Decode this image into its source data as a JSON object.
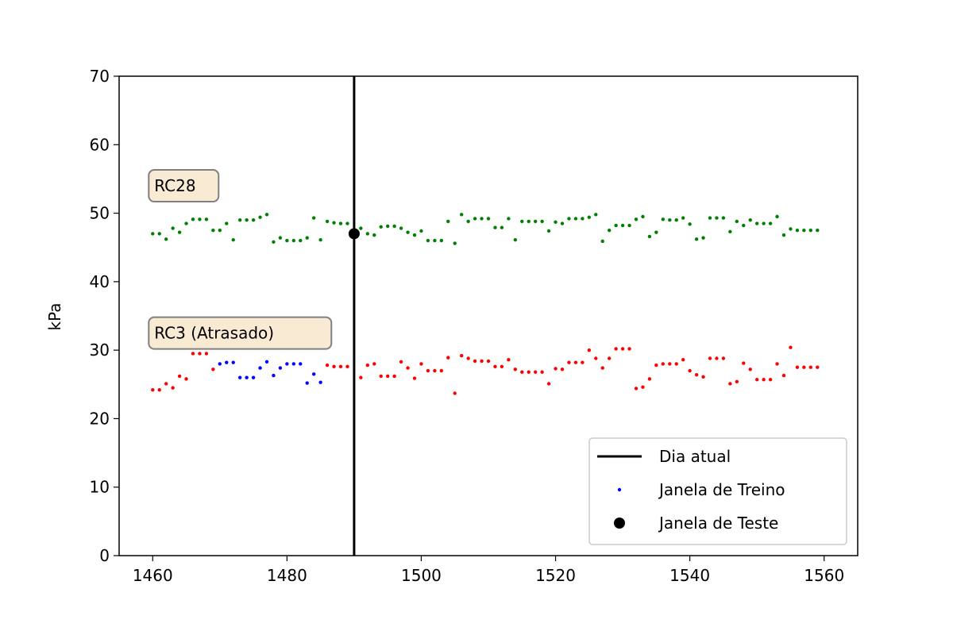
{
  "chart_data": {
    "type": "scatter",
    "title": "",
    "xlabel": "",
    "ylabel": "kPa",
    "xlim": [
      1455,
      1565
    ],
    "ylim": [
      0,
      70
    ],
    "xticks": [
      1460,
      1480,
      1500,
      1520,
      1540,
      1560
    ],
    "yticks": [
      0,
      10,
      20,
      30,
      40,
      50,
      60,
      70
    ],
    "grid": false,
    "legend_position": "lower-right",
    "colors": {
      "rc28": "#008000",
      "rc3": "#ff0000",
      "train": "#0000ff",
      "test": "#000000",
      "current_day": "#000000",
      "annotation_fill": "#f9ead3",
      "annotation_border": "#808080"
    },
    "vertical_line": {
      "x": 1490,
      "label": "Dia atual"
    },
    "annotations": [
      {
        "text": "RC28",
        "x": 1460,
        "y": 54
      },
      {
        "text": "RC3 (Atrasado)",
        "x": 1460,
        "y": 32.5
      }
    ],
    "legend": [
      {
        "label": "Dia atual",
        "marker": "line",
        "color": "#000000"
      },
      {
        "label": "Janela de Treino",
        "marker": "small-dot",
        "color": "#0000ff"
      },
      {
        "label": "Janela de Teste",
        "marker": "big-dot",
        "color": "#000000"
      }
    ],
    "series": [
      {
        "role": "rc28",
        "color": "#008000",
        "points": [
          [
            1460,
            47.0
          ],
          [
            1461,
            47.0
          ],
          [
            1462,
            46.2
          ],
          [
            1463,
            47.8
          ],
          [
            1464,
            47.2
          ],
          [
            1465,
            48.5
          ],
          [
            1466,
            49.1
          ],
          [
            1467,
            49.1
          ],
          [
            1468,
            49.1
          ],
          [
            1469,
            47.5
          ],
          [
            1470,
            47.5
          ],
          [
            1471,
            48.5
          ],
          [
            1472,
            46.1
          ],
          [
            1473,
            49.0
          ],
          [
            1474,
            49.0
          ],
          [
            1475,
            49.0
          ],
          [
            1476,
            49.4
          ],
          [
            1477,
            49.8
          ],
          [
            1478,
            45.8
          ],
          [
            1479,
            46.4
          ],
          [
            1480,
            46.0
          ],
          [
            1481,
            46.0
          ],
          [
            1482,
            46.0
          ],
          [
            1483,
            46.4
          ],
          [
            1484,
            49.3
          ],
          [
            1485,
            46.1
          ],
          [
            1486,
            48.8
          ],
          [
            1487,
            48.6
          ],
          [
            1488,
            48.5
          ],
          [
            1489,
            48.5
          ],
          [
            1491,
            47.8
          ],
          [
            1492,
            47.0
          ],
          [
            1493,
            46.8
          ],
          [
            1494,
            48.0
          ],
          [
            1495,
            48.1
          ],
          [
            1496,
            48.1
          ],
          [
            1497,
            47.8
          ],
          [
            1498,
            47.2
          ],
          [
            1499,
            46.8
          ],
          [
            1500,
            47.4
          ],
          [
            1501,
            46.0
          ],
          [
            1502,
            46.0
          ],
          [
            1503,
            46.0
          ],
          [
            1504,
            48.8
          ],
          [
            1505,
            45.6
          ],
          [
            1506,
            49.8
          ],
          [
            1507,
            48.8
          ],
          [
            1508,
            49.2
          ],
          [
            1509,
            49.2
          ],
          [
            1510,
            49.2
          ],
          [
            1511,
            47.9
          ],
          [
            1512,
            47.9
          ],
          [
            1513,
            49.2
          ],
          [
            1514,
            46.1
          ],
          [
            1515,
            48.8
          ],
          [
            1516,
            48.8
          ],
          [
            1517,
            48.8
          ],
          [
            1518,
            48.8
          ],
          [
            1519,
            47.4
          ],
          [
            1520,
            48.7
          ],
          [
            1521,
            48.5
          ],
          [
            1522,
            49.2
          ],
          [
            1523,
            49.2
          ],
          [
            1524,
            49.2
          ],
          [
            1525,
            49.4
          ],
          [
            1526,
            49.8
          ],
          [
            1527,
            45.9
          ],
          [
            1528,
            47.5
          ],
          [
            1529,
            48.2
          ],
          [
            1530,
            48.2
          ],
          [
            1531,
            48.2
          ],
          [
            1532,
            49.1
          ],
          [
            1533,
            49.5
          ],
          [
            1534,
            46.6
          ],
          [
            1535,
            47.2
          ],
          [
            1536,
            49.1
          ],
          [
            1537,
            49.0
          ],
          [
            1538,
            49.0
          ],
          [
            1539,
            49.3
          ],
          [
            1540,
            48.4
          ],
          [
            1541,
            46.2
          ],
          [
            1542,
            46.4
          ],
          [
            1543,
            49.3
          ],
          [
            1544,
            49.3
          ],
          [
            1545,
            49.3
          ],
          [
            1546,
            47.3
          ],
          [
            1547,
            48.8
          ],
          [
            1548,
            48.2
          ],
          [
            1549,
            49.0
          ],
          [
            1550,
            48.5
          ],
          [
            1551,
            48.5
          ],
          [
            1552,
            48.5
          ],
          [
            1553,
            49.5
          ],
          [
            1554,
            46.8
          ],
          [
            1555,
            47.7
          ],
          [
            1556,
            47.5
          ],
          [
            1557,
            47.5
          ],
          [
            1558,
            47.5
          ],
          [
            1559,
            47.5
          ]
        ]
      },
      {
        "role": "rc3",
        "color": "#ff0000",
        "points": [
          [
            1460,
            24.2
          ],
          [
            1461,
            24.2
          ],
          [
            1462,
            25.1
          ],
          [
            1463,
            24.5
          ],
          [
            1464,
            26.2
          ],
          [
            1465,
            25.8
          ],
          [
            1466,
            29.5
          ],
          [
            1467,
            29.5
          ],
          [
            1468,
            29.5
          ],
          [
            1469,
            27.2
          ],
          [
            1486,
            27.8
          ],
          [
            1487,
            27.6
          ],
          [
            1488,
            27.6
          ],
          [
            1489,
            27.6
          ],
          [
            1491,
            26.0
          ],
          [
            1492,
            27.8
          ],
          [
            1493,
            28.0
          ],
          [
            1494,
            26.2
          ],
          [
            1495,
            26.2
          ],
          [
            1496,
            26.2
          ],
          [
            1497,
            28.3
          ],
          [
            1498,
            27.4
          ],
          [
            1499,
            25.9
          ],
          [
            1500,
            28.0
          ],
          [
            1501,
            27.0
          ],
          [
            1502,
            27.0
          ],
          [
            1503,
            27.0
          ],
          [
            1504,
            28.9
          ],
          [
            1505,
            23.7
          ],
          [
            1506,
            29.2
          ],
          [
            1507,
            28.8
          ],
          [
            1508,
            28.4
          ],
          [
            1509,
            28.4
          ],
          [
            1510,
            28.4
          ],
          [
            1511,
            27.6
          ],
          [
            1512,
            27.6
          ],
          [
            1513,
            28.6
          ],
          [
            1514,
            27.2
          ],
          [
            1515,
            26.8
          ],
          [
            1516,
            26.8
          ],
          [
            1517,
            26.8
          ],
          [
            1518,
            26.8
          ],
          [
            1519,
            25.1
          ],
          [
            1520,
            27.3
          ],
          [
            1521,
            27.2
          ],
          [
            1522,
            28.2
          ],
          [
            1523,
            28.2
          ],
          [
            1524,
            28.2
          ],
          [
            1525,
            30.0
          ],
          [
            1526,
            28.8
          ],
          [
            1527,
            27.4
          ],
          [
            1528,
            28.8
          ],
          [
            1529,
            30.2
          ],
          [
            1530,
            30.2
          ],
          [
            1531,
            30.2
          ],
          [
            1532,
            24.4
          ],
          [
            1533,
            24.6
          ],
          [
            1534,
            25.8
          ],
          [
            1535,
            27.8
          ],
          [
            1536,
            28.0
          ],
          [
            1537,
            28.0
          ],
          [
            1538,
            28.0
          ],
          [
            1539,
            28.6
          ],
          [
            1540,
            27.0
          ],
          [
            1541,
            26.4
          ],
          [
            1542,
            26.1
          ],
          [
            1543,
            28.8
          ],
          [
            1544,
            28.8
          ],
          [
            1545,
            28.8
          ],
          [
            1546,
            25.1
          ],
          [
            1547,
            25.4
          ],
          [
            1548,
            28.1
          ],
          [
            1549,
            27.2
          ],
          [
            1550,
            25.7
          ],
          [
            1551,
            25.7
          ],
          [
            1552,
            25.7
          ],
          [
            1553,
            28.0
          ],
          [
            1554,
            26.3
          ],
          [
            1555,
            30.4
          ],
          [
            1556,
            27.5
          ],
          [
            1557,
            27.5
          ],
          [
            1558,
            27.5
          ],
          [
            1559,
            27.5
          ]
        ]
      },
      {
        "role": "train",
        "label": "Janela de Treino",
        "color": "#0000ff",
        "points": [
          [
            1470,
            28.0
          ],
          [
            1471,
            28.2
          ],
          [
            1472,
            28.2
          ],
          [
            1473,
            26.0
          ],
          [
            1474,
            26.0
          ],
          [
            1475,
            26.0
          ],
          [
            1476,
            27.4
          ],
          [
            1477,
            28.3
          ],
          [
            1478,
            26.3
          ],
          [
            1479,
            27.4
          ],
          [
            1480,
            28.0
          ],
          [
            1481,
            28.0
          ],
          [
            1482,
            28.0
          ],
          [
            1483,
            25.2
          ],
          [
            1484,
            26.5
          ],
          [
            1485,
            25.3
          ]
        ]
      },
      {
        "role": "test",
        "label": "Janela de Teste",
        "color": "#000000",
        "points": [
          [
            1490,
            47.0
          ]
        ]
      }
    ]
  }
}
